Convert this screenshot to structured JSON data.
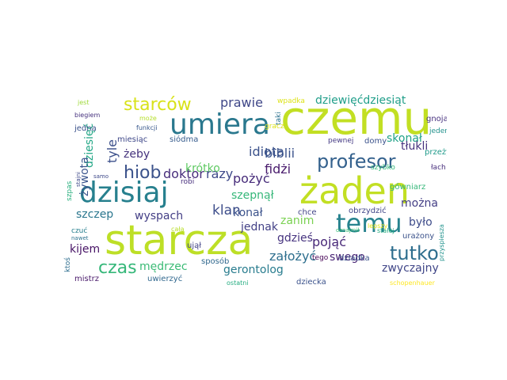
{
  "words": [
    {
      "text": "czemu",
      "color": "#c2df23"
    },
    {
      "text": "żaden",
      "color": "#c2df23"
    },
    {
      "text": "starcza",
      "color": "#bddf26"
    },
    {
      "text": "umiera",
      "color": "#2a788e"
    },
    {
      "text": "dzisiaj",
      "color": "#27808e"
    },
    {
      "text": "temu",
      "color": "#26828e"
    },
    {
      "text": "profesor",
      "color": "#34618d"
    },
    {
      "text": "tutko",
      "color": "#2e6e8e"
    },
    {
      "text": "starców",
      "color": "#d8e219"
    },
    {
      "text": "hiob",
      "color": "#3b528b"
    },
    {
      "text": "czas",
      "color": "#35b779"
    },
    {
      "text": "dziewięćdziesiąt",
      "color": "#1f9e89"
    },
    {
      "text": "idiota",
      "color": "#3b528b"
    },
    {
      "text": "prawie",
      "color": "#3f4788"
    },
    {
      "text": "klan",
      "color": "#3d4d8a"
    },
    {
      "text": "doktor",
      "color": "#472d7b"
    },
    {
      "text": "razy",
      "color": "#3e4989"
    },
    {
      "text": "fidżi",
      "color": "#481a6c"
    },
    {
      "text": "biblii",
      "color": "#3a538b"
    },
    {
      "text": "pożyć",
      "color": "#472c7a"
    },
    {
      "text": "krótko",
      "color": "#5ec962"
    },
    {
      "text": "szepnął",
      "color": "#35b779"
    },
    {
      "text": "skonał",
      "color": "#1fa187"
    },
    {
      "text": "tłukli",
      "color": "#46327e"
    },
    {
      "text": "konał",
      "color": "#3b528b"
    },
    {
      "text": "można",
      "color": "#433e85"
    },
    {
      "text": "pojąć",
      "color": "#482878"
    },
    {
      "text": "gdzieś",
      "color": "#46337f"
    },
    {
      "text": "zanim",
      "color": "#7ad151"
    },
    {
      "text": "było",
      "color": "#3e4c8a"
    },
    {
      "text": "jednak",
      "color": "#424086"
    },
    {
      "text": "zwyczajny",
      "color": "#404688"
    },
    {
      "text": "swego",
      "color": "#482475"
    },
    {
      "text": "gerontolog",
      "color": "#287c8e"
    },
    {
      "text": "założyć",
      "color": "#2e6f8e"
    },
    {
      "text": "mędrzec",
      "color": "#3bbb75"
    },
    {
      "text": "kijem",
      "color": "#471365"
    },
    {
      "text": "szczep",
      "color": "#2a768e"
    },
    {
      "text": "wyspach",
      "color": "#433e85"
    },
    {
      "text": "żeby",
      "color": "#45337d"
    },
    {
      "text": "tyle",
      "color": "#3c508b"
    },
    {
      "text": "dziesięć",
      "color": "#21a685"
    },
    {
      "text": "żywota",
      "color": "#3a548c"
    },
    {
      "text": "jedna",
      "color": "#3b528b"
    },
    {
      "text": "funkcji",
      "color": "#38588c"
    },
    {
      "text": "siódma",
      "color": "#365c8d"
    },
    {
      "text": "miesiąc",
      "color": "#3f4889"
    },
    {
      "text": "biegiem",
      "color": "#46327e"
    },
    {
      "text": "może",
      "color": "#b5de2b"
    },
    {
      "text": "jest",
      "color": "#9fda3a"
    },
    {
      "text": "wpadka",
      "color": "#dde318"
    },
    {
      "text": "taki",
      "color": "#2c728e"
    },
    {
      "text": "gnoja",
      "color": "#46307e"
    },
    {
      "text": "jeden",
      "color": "#21918c"
    },
    {
      "text": "przeżył",
      "color": "#1f9a8a"
    },
    {
      "text": "łach",
      "color": "#472e7c"
    },
    {
      "text": "szybko",
      "color": "#35b779"
    },
    {
      "text": "gówniarz",
      "color": "#35b779"
    },
    {
      "text": "pewnej",
      "color": "#443983"
    },
    {
      "text": "domy",
      "color": "#3b528b"
    },
    {
      "text": "gracz",
      "color": "#dde318"
    },
    {
      "text": "chce",
      "color": "#414487"
    },
    {
      "text": "obrzydzić",
      "color": "#404688"
    },
    {
      "text": "lepszy",
      "color": "#e5e419"
    },
    {
      "text": "urażony",
      "color": "#3b528b"
    },
    {
      "text": "stałej",
      "color": "#26ad81"
    },
    {
      "text": "oznajmił",
      "color": "#3bbb75"
    },
    {
      "text": "tego",
      "color": "#440154"
    },
    {
      "text": "dziadka",
      "color": "#3b528b"
    },
    {
      "text": "dziecka",
      "color": "#3b528b"
    },
    {
      "text": "ostatni",
      "color": "#26ad81"
    },
    {
      "text": "schopenhauer",
      "color": "#fde725"
    },
    {
      "text": "przyspiesza",
      "color": "#20928c"
    },
    {
      "text": "uwierzyć",
      "color": "#31688e"
    },
    {
      "text": "sposób",
      "color": "#31688e"
    },
    {
      "text": "ujął",
      "color": "#414487"
    },
    {
      "text": "robi",
      "color": "#472f7d"
    },
    {
      "text": "cała",
      "color": "#b8de29"
    },
    {
      "text": "czuć",
      "color": "#277f8e"
    },
    {
      "text": "nawet",
      "color": "#2c728e"
    },
    {
      "text": "mistrz",
      "color": "#48186a"
    },
    {
      "text": "ktoś",
      "color": "#2e6e8e"
    },
    {
      "text": "szpas",
      "color": "#2ab07f"
    },
    {
      "text": "stajni",
      "color": "#3e4989"
    },
    {
      "text": "samo",
      "color": "#3e4989"
    }
  ]
}
